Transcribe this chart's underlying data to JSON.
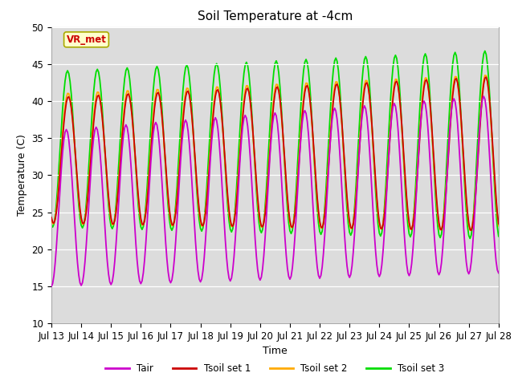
{
  "title": "Soil Temperature at -4cm",
  "xlabel": "Time",
  "ylabel": "Temperature (C)",
  "ylim": [
    10,
    50
  ],
  "bg_color": "#dcdcdc",
  "line_colors": {
    "Tair": "#cc00cc",
    "Tsoil set 1": "#cc0000",
    "Tsoil set 2": "#ffaa00",
    "Tsoil set 3": "#00dd00"
  },
  "xtick_labels": [
    "Jul 13",
    "Jul 14",
    "Jul 15",
    "Jul 16",
    "Jul 17",
    "Jul 18",
    "Jul 19",
    "Jul 20",
    "Jul 21",
    "Jul 22",
    "Jul 23",
    "Jul 24",
    "Jul 25",
    "Jul 26",
    "Jul 27",
    "Jul 28"
  ],
  "annotation_text": "VR_met",
  "annotation_color": "#cc0000",
  "annotation_bg": "#ffffcc",
  "annotation_border": "#aaaa00"
}
